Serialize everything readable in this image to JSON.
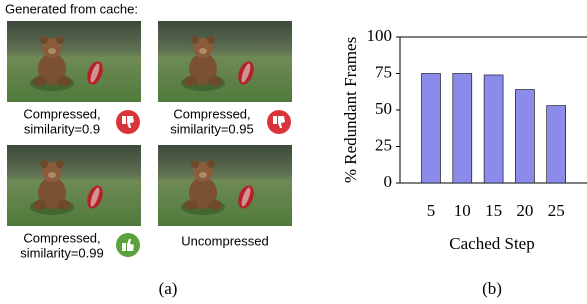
{
  "panel_a": {
    "title": "Generated from cache:",
    "images": [
      {
        "caption": [
          "Compressed,",
          "similarity=0.9"
        ]
      },
      {
        "caption": [
          "Compressed,",
          "similarity=0.95"
        ]
      },
      {
        "caption": [
          "Compressed,",
          "similarity=0.99"
        ]
      },
      {
        "caption": [
          "Uncompressed"
        ]
      }
    ],
    "label": "(a)"
  },
  "chart_data": {
    "type": "bar",
    "ylabel": "% Redundant Frames",
    "xlabel": "Cached Step",
    "categories": [
      "5",
      "10",
      "15",
      "20",
      "25"
    ],
    "values": [
      75,
      75,
      74,
      64,
      53
    ],
    "color": "#8b8bec",
    "ylim": [
      0,
      100
    ],
    "yticks": [
      0,
      25,
      50,
      75,
      100
    ],
    "label": "(b)"
  }
}
